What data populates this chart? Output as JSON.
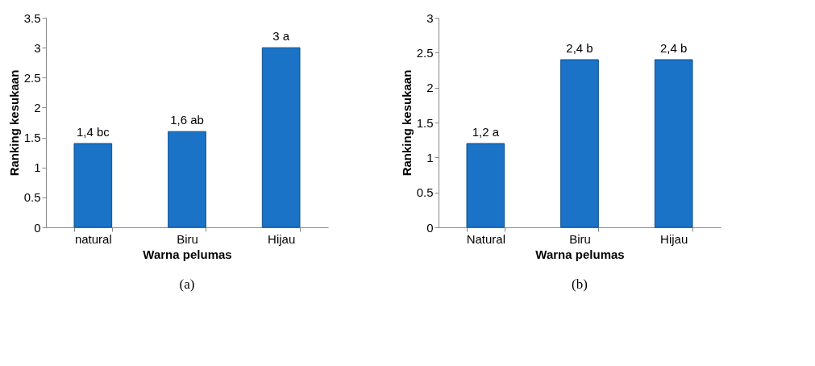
{
  "chart_data": [
    {
      "type": "bar",
      "xlabel": "Warna pelumas",
      "ylabel": "Ranking kesukaan",
      "categories": [
        "natural",
        "Biru",
        "Hijau"
      ],
      "values": [
        1.4,
        1.6,
        3
      ],
      "value_labels": [
        "1,4 bc",
        "1,6 ab",
        "3 a"
      ],
      "color": "#1a73c6",
      "ylim": [
        0,
        3.5
      ],
      "yticks": [
        0,
        0.5,
        1,
        1.5,
        2,
        2.5,
        3,
        3.5
      ],
      "grid": false,
      "annotations": [
        "(a)"
      ]
    },
    {
      "type": "bar",
      "xlabel": "Warna pelumas",
      "ylabel": "Ranking kesukaan",
      "categories": [
        "Natural",
        "Biru",
        "Hijau"
      ],
      "values": [
        1.2,
        2.4,
        2.4
      ],
      "value_labels": [
        "1,2 a",
        "2,4 b",
        "2,4 b"
      ],
      "color": "#1a73c6",
      "ylim": [
        0,
        3
      ],
      "yticks": [
        0,
        0.5,
        1,
        1.5,
        2,
        2.5,
        3
      ],
      "grid": false,
      "annotations": [
        "(b)"
      ]
    }
  ]
}
